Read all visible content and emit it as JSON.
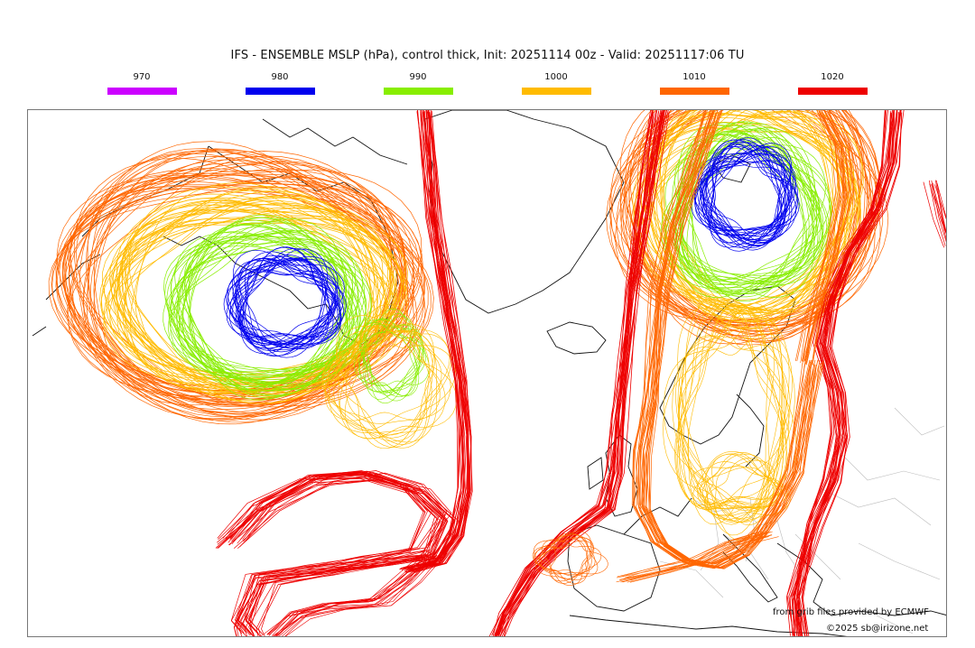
{
  "title": "IFS - ENSEMBLE MSLP (hPa), control thick, Init: 20251114 00z - Valid: 20251117:06 TU",
  "legend": [
    {
      "label": "970",
      "color": "#cc00ff"
    },
    {
      "label": "980",
      "color": "#0000ee"
    },
    {
      "label": "990",
      "color": "#88ee00"
    },
    {
      "label": "1000",
      "color": "#ffbb00"
    },
    {
      "label": "1010",
      "color": "#ff6600"
    },
    {
      "label": "1020",
      "color": "#ee0000"
    }
  ],
  "credits": {
    "source": "from grib files provided by ECMWF",
    "copyright": "©2025 sb@irizone.net"
  },
  "colors": {
    "coast": "#111111",
    "borders": "#bbbbbb"
  }
}
